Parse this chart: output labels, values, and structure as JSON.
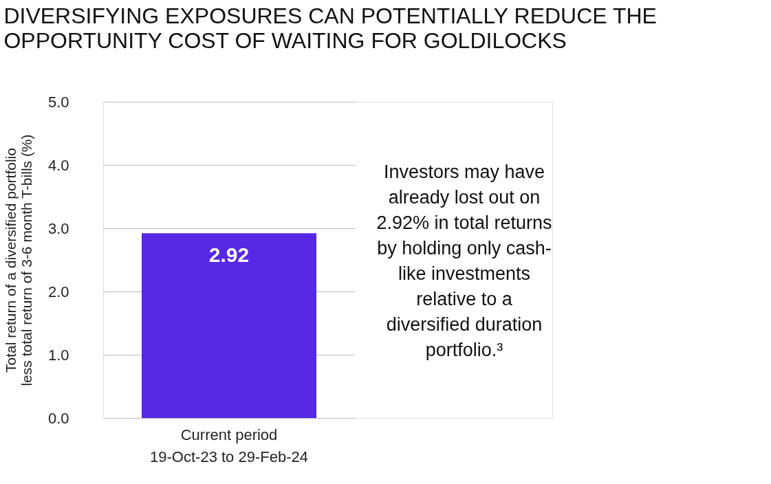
{
  "chart_data": {
    "type": "bar",
    "title": "DIVERSIFYING EXPOSURES CAN POTENTIALLY REDUCE THE OPPORTUNITY COST OF WAITING FOR GOLDILOCKS",
    "ylabel": "Total return of a diversified portfolio less total return of 3-6 month T-bills (%)",
    "categories": [
      "Current period\n19-Oct-23 to 29-Feb-24"
    ],
    "values": [
      2.92
    ],
    "color": "#5628e6",
    "data_labels": true,
    "ylim": [
      0,
      5
    ],
    "yticks": [
      {
        "value": 0,
        "label": "0.0"
      },
      {
        "value": 1,
        "label": "1.0"
      },
      {
        "value": 2,
        "label": "2.0"
      },
      {
        "value": 3,
        "label": "3.0"
      },
      {
        "value": 4,
        "label": "4.0"
      },
      {
        "value": 5,
        "label": "5.0"
      }
    ],
    "grid": "y",
    "annotations": [
      "Investors may have already lost out on 2.92% in total returns by holding only cash-like investments relative to a diversified duration portfolio.³"
    ]
  }
}
